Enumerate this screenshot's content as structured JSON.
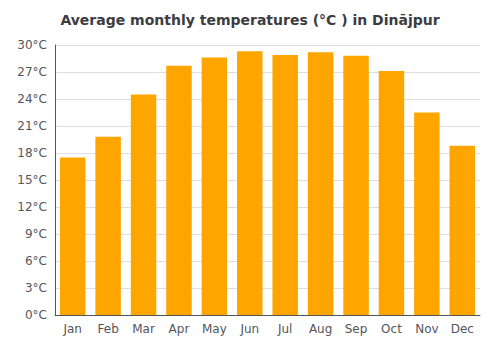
{
  "chart_data": {
    "type": "bar",
    "title": "Average monthly temperatures (°C ) in Dinājpur",
    "categories": [
      "Jan",
      "Feb",
      "Mar",
      "Apr",
      "May",
      "Jun",
      "Jul",
      "Aug",
      "Sep",
      "Oct",
      "Nov",
      "Dec"
    ],
    "values": [
      17.5,
      19.8,
      24.5,
      27.7,
      28.6,
      29.3,
      28.9,
      29.2,
      28.8,
      27.1,
      22.5,
      18.8
    ],
    "color": "#FFA500",
    "ylim": [
      0,
      30
    ],
    "yticks": [
      {
        "value": 0,
        "label": "0°C"
      },
      {
        "value": 3,
        "label": "3°C"
      },
      {
        "value": 6,
        "label": "6°C"
      },
      {
        "value": 9,
        "label": "9°C"
      },
      {
        "value": 12,
        "label": "12°C"
      },
      {
        "value": 15,
        "label": "15°C"
      },
      {
        "value": 18,
        "label": "18°C"
      },
      {
        "value": 21,
        "label": "21°C"
      },
      {
        "value": 24,
        "label": "24°C"
      },
      {
        "value": 27,
        "label": "27°C"
      },
      {
        "value": 30,
        "label": "30°C"
      }
    ],
    "grid": true
  }
}
